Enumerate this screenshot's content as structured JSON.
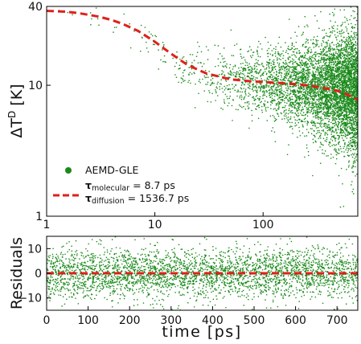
{
  "chart_data": [
    {
      "type": "scatter",
      "panel": "main",
      "xscale": "log",
      "yscale": "log",
      "xlim": [
        1,
        750
      ],
      "ylim": [
        1,
        40
      ],
      "xticks": [
        1,
        10,
        100
      ],
      "xtick_labels": [
        "1",
        "10",
        "100"
      ],
      "yticks": [
        1,
        10,
        40
      ],
      "ytick_labels": [
        "1",
        "10",
        "40"
      ],
      "xlabel": "",
      "ylabel_main": "ΔT",
      "ylabel_sup": "D",
      "ylabel_unit": " [K]",
      "grid": false,
      "legend_position": "lower-left",
      "legend": {
        "scatter_label": "AEMD-GLE",
        "fit_line1_main": "τ",
        "fit_line1_sub": "molecular",
        "fit_line1_value": " = 8.7 ps",
        "fit_line2_main": "τ",
        "fit_line2_sub": "diffusion",
        "fit_line2_value": " = 1536.7 ps"
      },
      "series": [
        {
          "name": "AEMD-GLE",
          "kind": "scatter",
          "color": "#1a8a1a",
          "x": [
            1,
            2,
            3,
            5,
            8,
            12,
            20,
            30,
            50,
            80,
            120,
            200,
            300,
            400,
            500,
            600,
            700,
            750
          ],
          "y_center": [
            37,
            34,
            31,
            27,
            22,
            17,
            13,
            11.5,
            10.8,
            10.5,
            10.2,
            10,
            9.8,
            9.5,
            9.3,
            9,
            8.7,
            8.5
          ],
          "y_spread_factor": [
            1.1,
            1.15,
            1.2,
            1.25,
            1.3,
            1.3,
            1.35,
            1.4,
            1.45,
            1.5,
            1.6,
            1.7,
            1.8,
            1.9,
            2.0,
            2.1,
            2.2,
            2.2
          ]
        },
        {
          "name": "fit",
          "kind": "line",
          "color": "#e0201b",
          "dash": "dashed",
          "x": [
            1,
            1.5,
            2,
            3,
            4,
            5,
            7,
            10,
            14,
            20,
            30,
            50,
            80,
            120,
            200,
            300,
            400,
            500,
            600,
            700,
            750
          ],
          "y": [
            37,
            36.5,
            35.5,
            33.5,
            31.5,
            29.5,
            26,
            21.5,
            17.5,
            14.3,
            12.3,
            11.1,
            10.7,
            10.5,
            10.2,
            9.8,
            9.4,
            9.0,
            8.5,
            8.0,
            7.7
          ]
        }
      ]
    },
    {
      "type": "scatter",
      "panel": "residuals",
      "xscale": "linear",
      "xlim": [
        0,
        750
      ],
      "ylim": [
        -15,
        15
      ],
      "xticks": [
        0,
        100,
        200,
        300,
        400,
        500,
        600,
        700
      ],
      "xtick_labels": [
        "0",
        "100",
        "200",
        "300",
        "400",
        "500",
        "600",
        "700"
      ],
      "yticks": [
        -10,
        0,
        10
      ],
      "ytick_labels": [
        "−10",
        "0",
        "10"
      ],
      "xlabel": "time [ps]",
      "ylabel": "Residuals",
      "grid": false,
      "series": [
        {
          "name": "residuals",
          "kind": "scatter",
          "color": "#1a8a1a",
          "mean": 0,
          "sigma": 5
        },
        {
          "name": "zero",
          "kind": "line",
          "color": "#e0201b",
          "dash": "dashed",
          "y": 0
        }
      ]
    }
  ]
}
